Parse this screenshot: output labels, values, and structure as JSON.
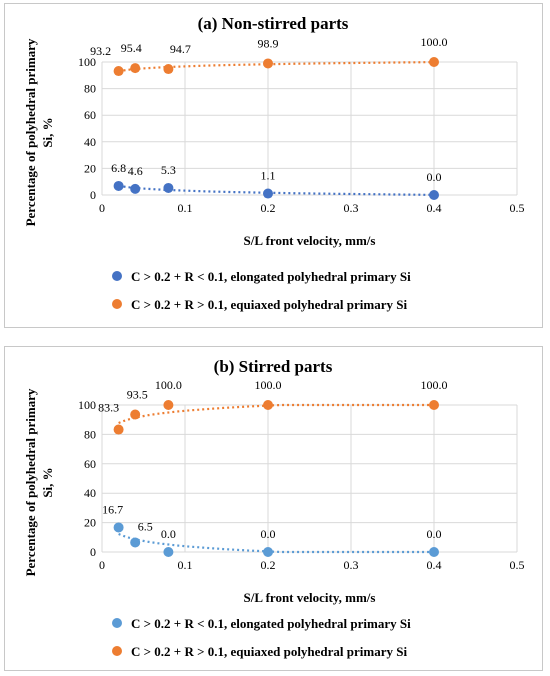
{
  "chart_data": [
    {
      "type": "scatter",
      "title": "(a) Non-stirred parts",
      "xlabel": "S/L front  velocity, mm/s",
      "ylabel": "Percentage of polyhedral primary Si, %",
      "xlim": [
        0,
        0.5
      ],
      "ylim": [
        0,
        100
      ],
      "xticks": [
        "0",
        "0.1",
        "0.2",
        "0.3",
        "0.4",
        "0.5"
      ],
      "yticks": [
        "0",
        "20",
        "40",
        "60",
        "80",
        "100"
      ],
      "grid": true,
      "legend_position": "bottom",
      "series": [
        {
          "name": "C > 0.2 + R < 0.1, elongated polyhedral primary Si",
          "color": "#4472C4",
          "x": [
            0.02,
            0.04,
            0.08,
            0.2,
            0.4
          ],
          "y": [
            6.8,
            4.6,
            5.3,
            1.1,
            0.0
          ],
          "labels": [
            "6.8",
            "4.6",
            "5.3",
            "1.1",
            "0.0"
          ]
        },
        {
          "name": "C > 0.2 + R > 0.1, equiaxed polyhedral primary Si",
          "color": "#ED7D31",
          "x": [
            0.02,
            0.04,
            0.08,
            0.2,
            0.4
          ],
          "y": [
            93.2,
            95.4,
            94.7,
            98.9,
            100.0
          ],
          "labels": [
            "93.2",
            "95.4",
            "94.7",
            "98.9",
            "100.0"
          ]
        }
      ]
    },
    {
      "type": "scatter",
      "title": "(b) Stirred parts",
      "xlabel": "S/L front  velocity, mm/s",
      "ylabel": "Percentage of polyhedral primary Si, %",
      "xlim": [
        0,
        0.5
      ],
      "ylim": [
        0,
        100
      ],
      "xticks": [
        "0",
        "0.1",
        "0.2",
        "0.3",
        "0.4",
        "0.5"
      ],
      "yticks": [
        "0",
        "20",
        "40",
        "60",
        "80",
        "100"
      ],
      "grid": true,
      "legend_position": "bottom",
      "series": [
        {
          "name": "C > 0.2 + R < 0.1, elongated polyhedral primary Si",
          "color": "#5B9BD5",
          "x": [
            0.02,
            0.04,
            0.08,
            0.2,
            0.4
          ],
          "y": [
            16.7,
            6.5,
            0.0,
            0.0,
            0.0
          ],
          "labels": [
            "16.7",
            "6.5",
            "0.0",
            "0.0",
            "0.0"
          ]
        },
        {
          "name": "C > 0.2 + R > 0.1, equiaxed polyhedral primary Si",
          "color": "#ED7D31",
          "x": [
            0.02,
            0.04,
            0.08,
            0.2,
            0.4
          ],
          "y": [
            83.3,
            93.5,
            100.0,
            100.0,
            100.0
          ],
          "labels": [
            "83.3",
            "93.5",
            "100.0",
            "100.0",
            "100.0"
          ]
        }
      ]
    }
  ]
}
